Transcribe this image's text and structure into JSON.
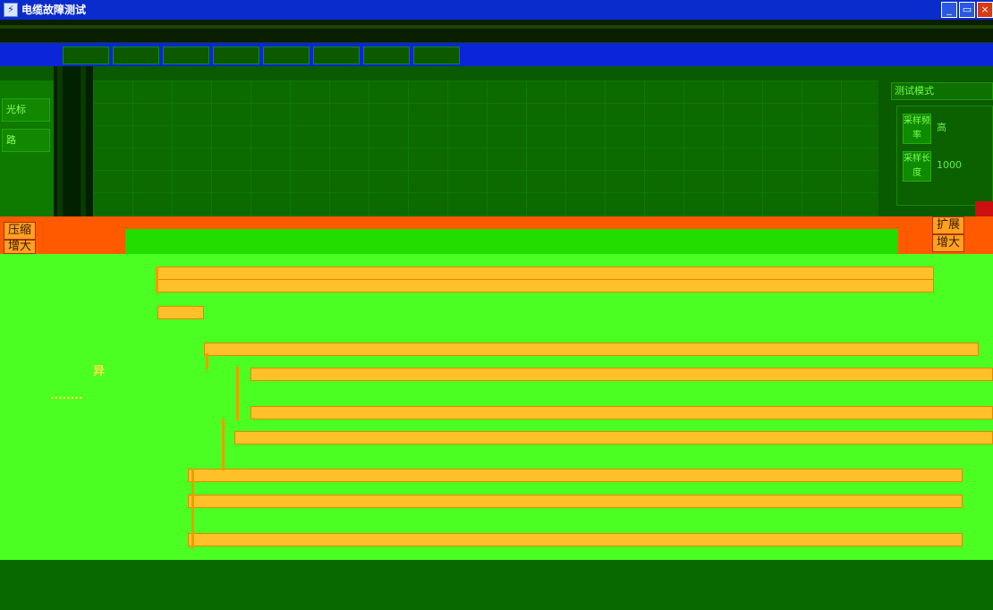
{
  "window": {
    "icon": "app-icon",
    "title": "电缆故障测试",
    "min": "_",
    "max": "▭",
    "close": "×"
  },
  "tabs": [
    "",
    "",
    "",
    "",
    "",
    "",
    "",
    ""
  ],
  "left_panel": {
    "label1": "光标",
    "label2": "路"
  },
  "right_panel": {
    "header": "测试模式",
    "cell1": "采样频率",
    "val1": "高",
    "cell2": "采样长度",
    "val2": "1000"
  },
  "strip": {
    "left_label1": "压缩",
    "left_label2": "增大",
    "right_label1": "扩展",
    "right_label2": "增大"
  },
  "tracks": {
    "label_a": "异",
    "dots": "........"
  },
  "colors": {
    "titlebar": "#0a2ccc",
    "background": "#4cff22",
    "strip": "#ff5a00",
    "track": "#ffc02a"
  }
}
